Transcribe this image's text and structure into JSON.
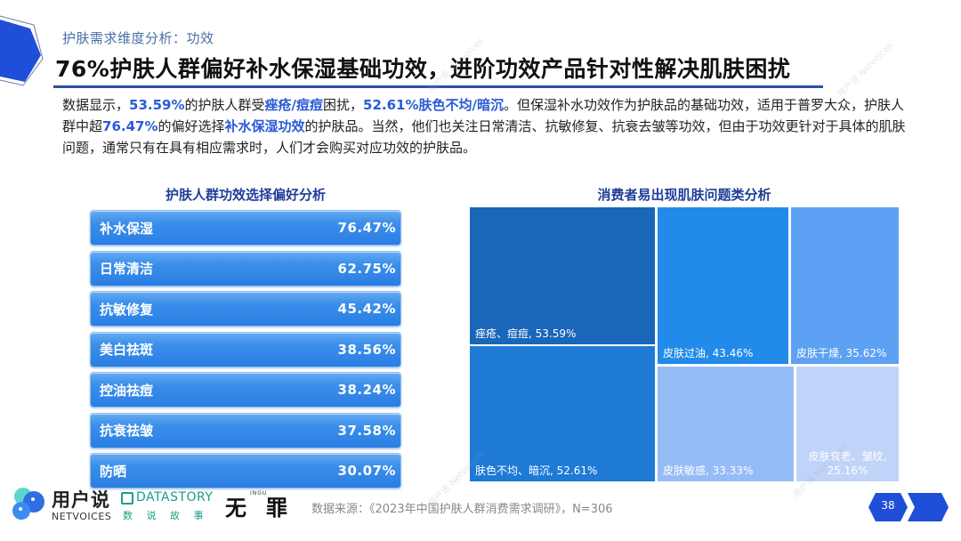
{
  "header": {
    "section_label": "护肤需求维度分析：功效",
    "title": "76%护肤人群偏好补水保湿基础功效，进阶功效产品针对性解决肌肤困扰"
  },
  "summary": {
    "segments": [
      {
        "text": "数据显示，",
        "hl": false
      },
      {
        "text": "53.59%",
        "hl": true
      },
      {
        "text": "的护肤人群受",
        "hl": false
      },
      {
        "text": "痤疮/痘痘",
        "hl": true
      },
      {
        "text": "困扰，",
        "hl": false
      },
      {
        "text": "52.61%肤色不均/暗沉",
        "hl": true
      },
      {
        "text": "。但保湿补水功效作为护肤品的基础功效，适用于普罗大众，护肤人群中超",
        "hl": false
      },
      {
        "text": "76.47%",
        "hl": true
      },
      {
        "text": "的偏好选择",
        "hl": false
      },
      {
        "text": "补水保湿功效",
        "hl": true
      },
      {
        "text": "的护肤品。当然，他们也关注日常清洁、抗敏修复、抗衰去皱等功效，但由于功效更针对于具体的肌肤问题，通常只有在具有相应需求时，人们才会购买对应功效的护肤品。",
        "hl": false
      }
    ]
  },
  "left_chart": {
    "title": "护肤人群功效选择偏好分析",
    "items": [
      {
        "label": "补水保湿",
        "value": "76.47%"
      },
      {
        "label": "日常清洁",
        "value": "62.75%"
      },
      {
        "label": "抗敏修复",
        "value": "45.42%"
      },
      {
        "label": "美白祛斑",
        "value": "38.56%"
      },
      {
        "label": "控油祛痘",
        "value": "38.24%"
      },
      {
        "label": "抗衰祛皱",
        "value": "37.58%"
      },
      {
        "label": "防晒",
        "value": "30.07%"
      }
    ]
  },
  "right_chart": {
    "title": "消费者易出现肌肤问题类分析",
    "cells": [
      {
        "label": "痤疮、痘痘, 53.59%",
        "color": "#1a66b8"
      },
      {
        "label": "肤色不均、暗沉, 52.61%",
        "color": "#1f7ad6"
      },
      {
        "label": "皮肤过油, 43.46%",
        "color": "#228bea"
      },
      {
        "label": "皮肤干燥, 35.62%",
        "color": "#5ca1f3"
      },
      {
        "label": "皮肤敏感, 33.33%",
        "color": "#96bcf7"
      },
      {
        "label": "皮肤衰老、皱纹, 25.16%",
        "color": "#c0d4f9"
      }
    ]
  },
  "chart_data": [
    {
      "type": "bar",
      "title": "护肤人群功效选择偏好分析",
      "categories": [
        "补水保湿",
        "日常清洁",
        "抗敏修复",
        "美白祛斑",
        "控油祛痘",
        "抗衰祛皱",
        "防晒"
      ],
      "values": [
        76.47,
        62.75,
        45.42,
        38.56,
        38.24,
        37.58,
        30.07
      ],
      "unit": "%",
      "orientation": "horizontal"
    },
    {
      "type": "treemap",
      "title": "消费者易出现肌肤问题类分析",
      "categories": [
        "痤疮、痘痘",
        "肤色不均、暗沉",
        "皮肤过油",
        "皮肤干燥",
        "皮肤敏感",
        "皮肤衰老、皱纹"
      ],
      "values": [
        53.59,
        52.61,
        43.46,
        35.62,
        33.33,
        25.16
      ],
      "unit": "%"
    }
  ],
  "footer": {
    "source": "数据来源：《2023年中国护肤人群消费需求调研》，N=306",
    "page_number": "38",
    "logo_netvoices_cn": "用户说",
    "logo_netvoices_en": "NETVOICES",
    "logo_datastory_en": "DATASTORY",
    "logo_datastory_cn": "数 说 故 事",
    "logo_wuzui": "无罪",
    "logo_wuzui_small": "INGU"
  },
  "colors": {
    "accent": "#2a5bd7",
    "title_blue": "#1f3d99",
    "badge": "#1f4fd8"
  }
}
